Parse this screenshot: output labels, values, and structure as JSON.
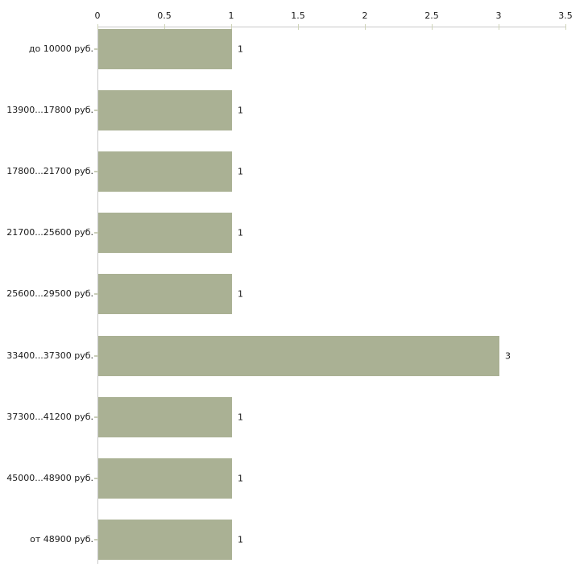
{
  "chart_data": {
    "type": "bar",
    "orientation": "horizontal",
    "title": "",
    "xlabel": "",
    "ylabel": "",
    "grid": false,
    "legend_position": "none",
    "categories": [
      "до 10000 руб.",
      "13900...17800 руб.",
      "17800...21700 руб.",
      "21700...25600 руб.",
      "25600...29500 руб.",
      "33400...37300 руб.",
      "37300...41200 руб.",
      "45000...48900 руб.",
      "от 48900 руб."
    ],
    "values": [
      1,
      1,
      1,
      1,
      1,
      3,
      1,
      1,
      1
    ],
    "value_labels": [
      "1",
      "1",
      "1",
      "1",
      "1",
      "3",
      "1",
      "1",
      "1"
    ],
    "x_axis": {
      "position": "top",
      "range": [
        0,
        3.5
      ],
      "ticks": [
        0,
        0.5,
        1,
        1.5,
        2,
        2.5,
        3,
        3.5
      ],
      "tick_labels": [
        "0",
        "0.5",
        "1",
        "1.5",
        "2",
        "2.5",
        "3",
        "3.5"
      ]
    },
    "colors": {
      "bar_fill": "#AAB194",
      "axis_line": "#C8C8C8",
      "tick_mark": "#CFD4B8",
      "text": "#1A1A1A",
      "background": "#FFFFFF"
    }
  }
}
